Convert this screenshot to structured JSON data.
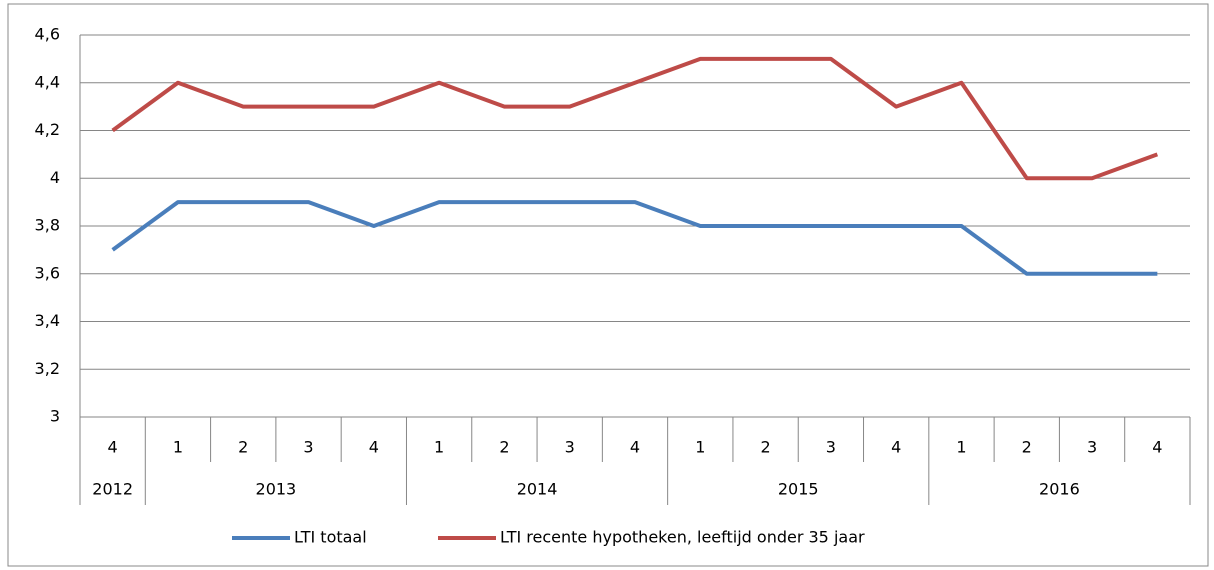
{
  "chart_data": {
    "type": "line",
    "groups": [
      {
        "label": "2012",
        "categories": [
          "4"
        ]
      },
      {
        "label": "2013",
        "categories": [
          "1",
          "2",
          "3",
          "4"
        ]
      },
      {
        "label": "2014",
        "categories": [
          "1",
          "2",
          "3",
          "4"
        ]
      },
      {
        "label": "2015",
        "categories": [
          "1",
          "2",
          "3",
          "4"
        ]
      },
      {
        "label": "2016",
        "categories": [
          "1",
          "2",
          "3",
          "4"
        ]
      }
    ],
    "series": [
      {
        "name": "LTI totaal",
        "color": "#4a7ebb",
        "values": [
          3.7,
          3.9,
          3.9,
          3.9,
          3.8,
          3.9,
          3.9,
          3.9,
          3.9,
          3.8,
          3.8,
          3.8,
          3.8,
          3.8,
          3.6,
          3.6,
          3.6
        ]
      },
      {
        "name": "LTI recente hypotheken, leeftijd onder 35 jaar",
        "color": "#be4b48",
        "values": [
          4.2,
          4.4,
          4.3,
          4.3,
          4.3,
          4.4,
          4.3,
          4.3,
          4.4,
          4.5,
          4.5,
          4.5,
          4.3,
          4.4,
          4.0,
          4.0,
          4.1
        ]
      }
    ],
    "ylim": [
      3,
      4.6
    ],
    "yticks": [
      3,
      {
        "value": 3.2,
        "label": "3,2"
      },
      {
        "value": 3.4,
        "label": "3,4"
      },
      {
        "value": 3.6,
        "label": "3,6"
      },
      {
        "value": 3.8,
        "label": "3,8"
      },
      4,
      {
        "value": 4.2,
        "label": "4,2"
      },
      {
        "value": 4.4,
        "label": "4,4"
      },
      {
        "value": 4.6,
        "label": "4,6"
      }
    ],
    "grid": true,
    "legend": "bottom"
  }
}
